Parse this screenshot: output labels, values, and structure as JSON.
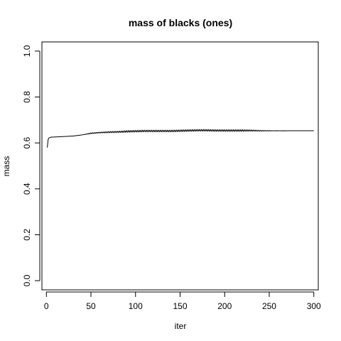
{
  "chart_data": {
    "type": "line",
    "title": "mass of blacks (ones)",
    "xlabel": "iter",
    "ylabel": "mass",
    "xlim": [
      -5,
      305
    ],
    "ylim": [
      -0.04,
      1.04
    ],
    "x_ticks": [
      0,
      50,
      100,
      150,
      200,
      250,
      300
    ],
    "y_ticks": [
      0.0,
      0.2,
      0.4,
      0.6,
      0.8,
      1.0
    ],
    "x_tick_labels": [
      "0",
      "50",
      "100",
      "150",
      "200",
      "250",
      "300"
    ],
    "y_tick_labels": [
      "0.0",
      "0.2",
      "0.4",
      "0.6",
      "0.8",
      "1.0"
    ],
    "grid": false,
    "line_color": "#000000",
    "series": [
      {
        "x": [
          1,
          2,
          3,
          5,
          10,
          20,
          30,
          40,
          50,
          60,
          70,
          80,
          90,
          100,
          110,
          120,
          130,
          140,
          150,
          160,
          170,
          180,
          190,
          200,
          210,
          220,
          230,
          240,
          250,
          260,
          270,
          280,
          290,
          300
        ],
        "y": [
          0.58,
          0.615,
          0.622,
          0.625,
          0.626,
          0.628,
          0.63,
          0.635,
          0.642,
          0.645,
          0.647,
          0.648,
          0.65,
          0.651,
          0.652,
          0.652,
          0.652,
          0.652,
          0.653,
          0.654,
          0.655,
          0.655,
          0.654,
          0.654,
          0.654,
          0.654,
          0.654,
          0.653,
          0.653,
          0.653,
          0.653,
          0.653,
          0.653,
          0.653
        ],
        "jitter": [
          0,
          0,
          0,
          0,
          0,
          0,
          0,
          0,
          0.002,
          0.002,
          0.003,
          0.003,
          0.004,
          0.004,
          0.004,
          0.004,
          0.004,
          0.004,
          0.004,
          0.004,
          0.004,
          0.004,
          0.004,
          0.004,
          0.004,
          0.004,
          0.003,
          0.002,
          0.001,
          0.0005,
          0,
          0,
          0,
          0
        ]
      }
    ]
  }
}
